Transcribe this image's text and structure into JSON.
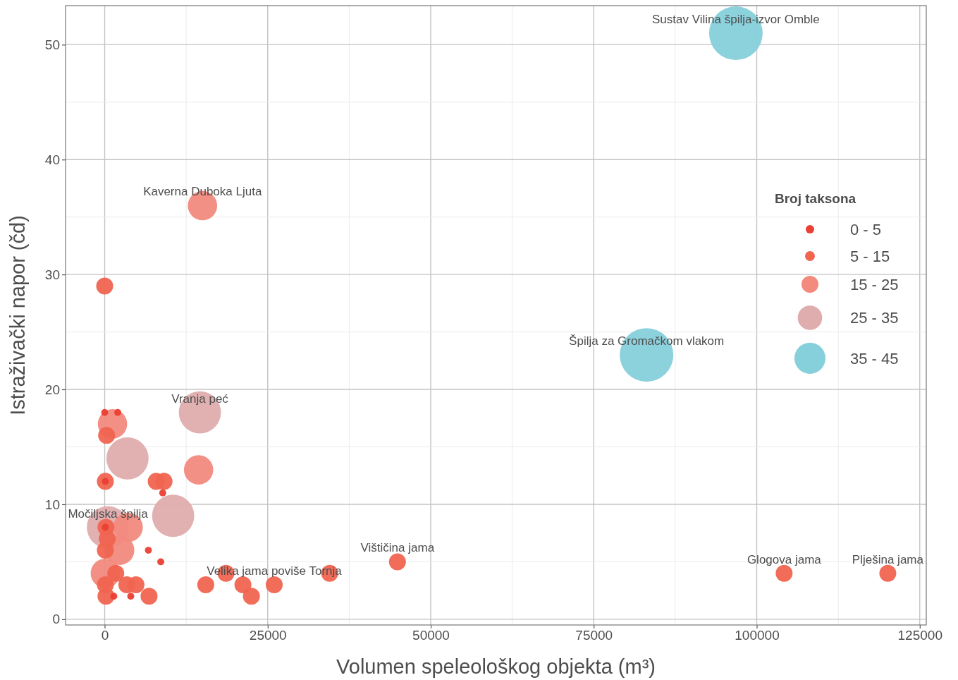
{
  "chart_data": {
    "type": "bubble",
    "xlabel": "Volumen speleološkog objekta (m³)",
    "ylabel": "Istraživački napor (čd)",
    "legend_title": "Broj taksona",
    "legend": "right",
    "marker": "circle",
    "grid": true,
    "xlim": [
      -6000,
      126000
    ],
    "ylim": [
      -0.5,
      53.4
    ],
    "xticks": [
      0,
      {
        "value": 12500,
        "label": null
      },
      25000,
      {
        "value": 37500,
        "label": null
      },
      50000,
      {
        "value": 62500,
        "label": null
      },
      75000,
      {
        "value": 87500,
        "label": null
      },
      100000,
      {
        "value": 112500,
        "label": null
      },
      125000
    ],
    "yticks": [
      0,
      {
        "value": 5,
        "label": null
      },
      10,
      {
        "value": 15,
        "label": null
      },
      20,
      {
        "value": 25,
        "label": null
      },
      30,
      {
        "value": 35,
        "label": null
      },
      40,
      {
        "value": 45,
        "label": null
      },
      50
    ],
    "series": [
      {
        "name": "0 - 5",
        "color": "#ea3f33",
        "x": [
          0,
          2000,
          100,
          100,
          6700,
          8600,
          8900,
          1400,
          4000
        ],
        "values": [
          18,
          18,
          12,
          8,
          6,
          5,
          11,
          2,
          2
        ],
        "sizes": [
          0.017,
          0.017,
          0.017,
          0.017,
          0.017,
          0.017,
          0.017,
          0.017,
          0.017
        ]
      },
      {
        "name": "5 - 15",
        "color": "#f06450",
        "x": [
          0,
          300,
          100,
          7900,
          9100,
          200,
          400,
          100,
          200,
          100,
          1700,
          3400,
          4800,
          6800,
          15500,
          18600,
          21200,
          22500,
          26000,
          34500,
          44900,
          104200,
          120100
        ],
        "values": [
          29,
          16,
          12,
          12,
          12,
          8,
          7,
          6,
          2,
          3,
          4,
          3,
          3,
          2,
          3,
          4,
          3,
          2,
          3,
          4,
          5,
          4,
          4
        ],
        "sizes": [
          0.1,
          0.1,
          0.1,
          0.1,
          0.1,
          0.1,
          0.1,
          0.1,
          0.1,
          0.1,
          0.1,
          0.1,
          0.1,
          0.1,
          0.1,
          0.1,
          0.1,
          0.1,
          0.1,
          0.1,
          0.1,
          0.1,
          0.1
        ]
      },
      {
        "name": "15 - 25",
        "color": "#f28a7e",
        "x": [
          15000,
          1200,
          14400,
          3600,
          2300,
          100
        ],
        "values": [
          36,
          17,
          13,
          8,
          6,
          4
        ],
        "sizes": [
          0.3,
          0.3,
          0.3,
          0.3,
          0.3,
          0.3
        ]
      },
      {
        "name": "25 - 35",
        "color": "#dfadad",
        "x": [
          14600,
          3500,
          10500,
          500
        ],
        "values": [
          18,
          14,
          9,
          8
        ],
        "sizes": [
          0.62,
          0.62,
          0.62,
          0.62
        ]
      },
      {
        "name": "35 - 45",
        "color": "#86d0db",
        "x": [
          96800,
          83100
        ],
        "values": [
          51,
          23
        ],
        "sizes": [
          1,
          1
        ]
      }
    ],
    "annotations": [
      {
        "text": "Sustav Vilina špilja-izvor Omble",
        "x": 96800,
        "y": 51
      },
      {
        "text": "Kaverna Duboka Ljuta",
        "x": 15000,
        "y": 36
      },
      {
        "text": "Špilja za Gromačkom vlakom",
        "x": 83100,
        "y": 23
      },
      {
        "text": "Vranja peć",
        "x": 14600,
        "y": 18
      },
      {
        "text": "Močiljska špilja",
        "x": 500,
        "y": 8
      },
      {
        "text": "Velika jama poviše Tornja",
        "x": 26000,
        "y": 3
      },
      {
        "text": "Vištičina jama",
        "x": 44900,
        "y": 5
      },
      {
        "text": "Glogova jama",
        "x": 104200,
        "y": 4
      },
      {
        "text": "Plješina jama",
        "x": 120100,
        "y": 4
      }
    ]
  }
}
